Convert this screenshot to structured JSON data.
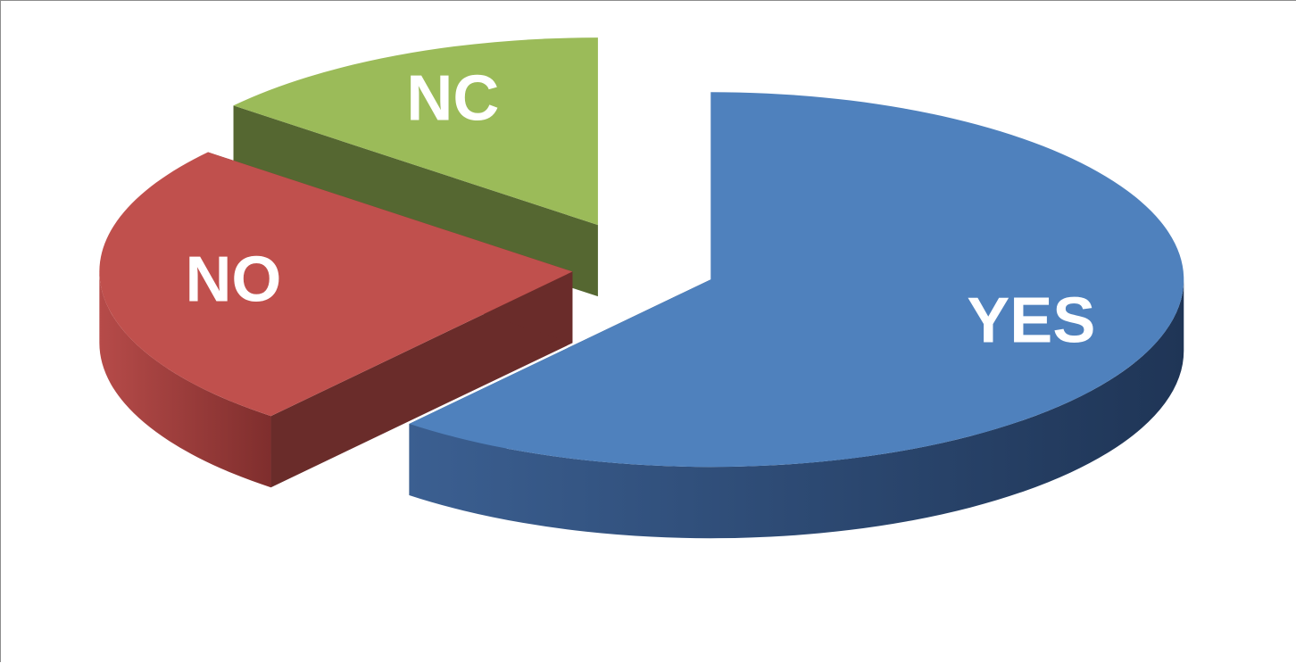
{
  "chart_data": {
    "type": "pie",
    "style": "3d-exploded",
    "categories": [
      "YES",
      "NO",
      "NC"
    ],
    "values": [
      61,
      25,
      14
    ],
    "unit": "%",
    "series": [
      {
        "values": [
          61,
          25,
          14
        ],
        "colors": [
          "#4F81BD",
          "#C0504D",
          "#9BBB59"
        ]
      }
    ],
    "title": "",
    "legend": "none",
    "labels_inside_slices": true
  }
}
